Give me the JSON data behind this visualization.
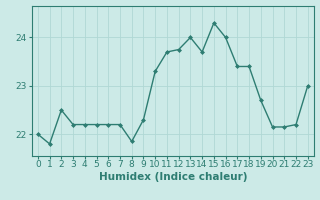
{
  "x": [
    0,
    1,
    2,
    3,
    4,
    5,
    6,
    7,
    8,
    9,
    10,
    11,
    12,
    13,
    14,
    15,
    16,
    17,
    18,
    19,
    20,
    21,
    22,
    23
  ],
  "y": [
    22.0,
    21.8,
    22.5,
    22.2,
    22.2,
    22.2,
    22.2,
    22.2,
    21.85,
    22.3,
    23.3,
    23.7,
    23.75,
    24.0,
    23.7,
    24.3,
    24.0,
    23.4,
    23.4,
    22.7,
    22.15,
    22.15,
    22.2,
    23.0
  ],
  "line_color": "#2e7d72",
  "marker": "D",
  "marker_color": "#2e7d72",
  "marker_size": 2.0,
  "line_width": 1.0,
  "bg_color": "#cceae7",
  "grid_color": "#b0d8d4",
  "xlabel": "Humidex (Indice chaleur)",
  "xlabel_fontsize": 7.5,
  "tick_fontsize": 6.5,
  "yticks": [
    22,
    23,
    24
  ],
  "ylim": [
    21.55,
    24.65
  ],
  "xlim": [
    -0.5,
    23.5
  ],
  "title": ""
}
